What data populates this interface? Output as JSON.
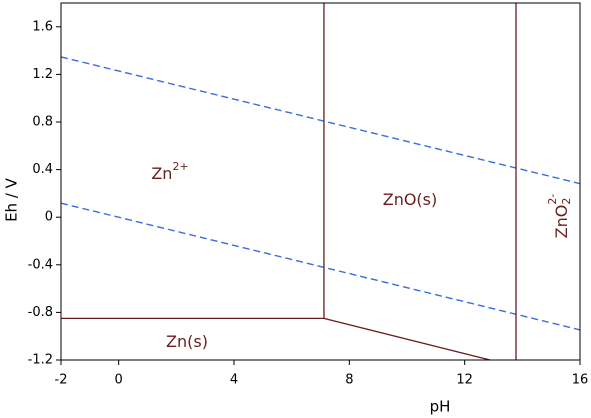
{
  "chart_data": {
    "type": "line",
    "xlabel": "pH",
    "ylabel": "Eh / V",
    "xlim": [
      -2,
      16
    ],
    "ylim": [
      -1.2,
      1.8
    ],
    "xticks": [
      -2,
      0,
      4,
      8,
      12,
      16
    ],
    "yticks": [
      1.6,
      1.2,
      0.8,
      0.4,
      0,
      -0.4,
      -0.8,
      -1.2
    ],
    "series": [
      {
        "color": "#3a6fd8",
        "dash": true,
        "x": [
          -2,
          16
        ],
        "values": [
          1.347,
          0.282
        ]
      },
      {
        "color": "#3a6fd8",
        "dash": true,
        "x": [
          -2,
          16
        ],
        "values": [
          0.118,
          -0.947
        ]
      },
      {
        "color": "#6b1d1d",
        "dash": false,
        "x": [
          -2,
          7.12
        ],
        "values": [
          -0.85,
          -0.85
        ]
      },
      {
        "color": "#6b1d1d",
        "dash": false,
        "x": [
          7.12,
          7.12
        ],
        "values": [
          -0.85,
          1.8
        ]
      },
      {
        "color": "#6b1d1d",
        "dash": false,
        "x": [
          7.12,
          12.88
        ],
        "values": [
          -0.85,
          -1.2
        ]
      },
      {
        "color": "#6b1d1d",
        "dash": false,
        "x": [
          13.78,
          13.78
        ],
        "values": [
          -1.2,
          1.8
        ]
      }
    ],
    "annotations": [
      {
        "text": "Zn",
        "sup": "2+"
      },
      {
        "text": "ZnO(s)"
      },
      {
        "text": "ZnO",
        "sub": "2",
        "sup": "2-"
      },
      {
        "text": "Zn(s)"
      }
    ]
  }
}
